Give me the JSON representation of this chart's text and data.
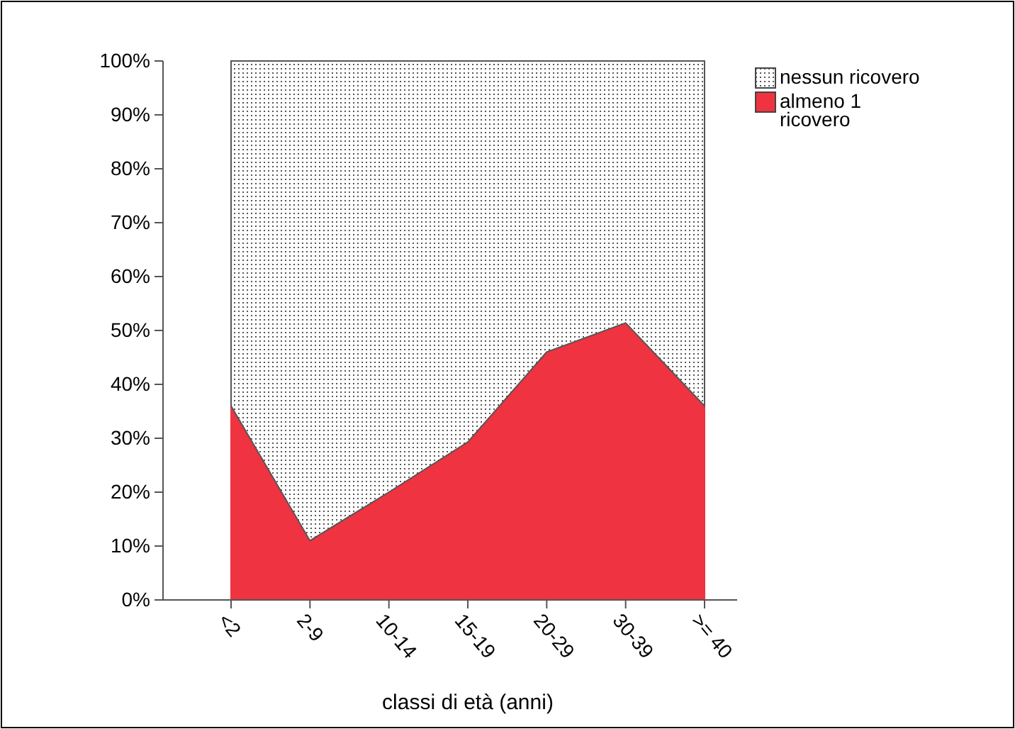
{
  "chart_data": {
    "type": "area",
    "stacked": true,
    "xlabel": "classi di età (anni)",
    "categories": [
      "<2",
      "2-9",
      "10-14",
      "15-19",
      "20-29",
      "30-39",
      ">= 40"
    ],
    "series": [
      {
        "name": "almeno 1 ricovero",
        "color": "#ef3340",
        "values": [
          36,
          11,
          20,
          29.3,
          46,
          51.4,
          36
        ]
      },
      {
        "name": "nessun ricovero",
        "color": "#555555",
        "values": [
          64,
          89,
          80,
          70.7,
          54,
          48.6,
          64
        ]
      }
    ],
    "ylim": [
      0,
      100
    ],
    "yticks": [
      {
        "value": 0,
        "label": "0%"
      },
      {
        "value": 10,
        "label": "10%"
      },
      {
        "value": 20,
        "label": "20%"
      },
      {
        "value": 30,
        "label": "30%"
      },
      {
        "value": 40,
        "label": "40%"
      },
      {
        "value": 50,
        "label": "50%"
      },
      {
        "value": 60,
        "label": "60%"
      },
      {
        "value": 70,
        "label": "70%"
      },
      {
        "value": 80,
        "label": "80%"
      },
      {
        "value": 90,
        "label": "90%"
      },
      {
        "value": 100,
        "label": "100%"
      }
    ],
    "legend": "top right"
  }
}
